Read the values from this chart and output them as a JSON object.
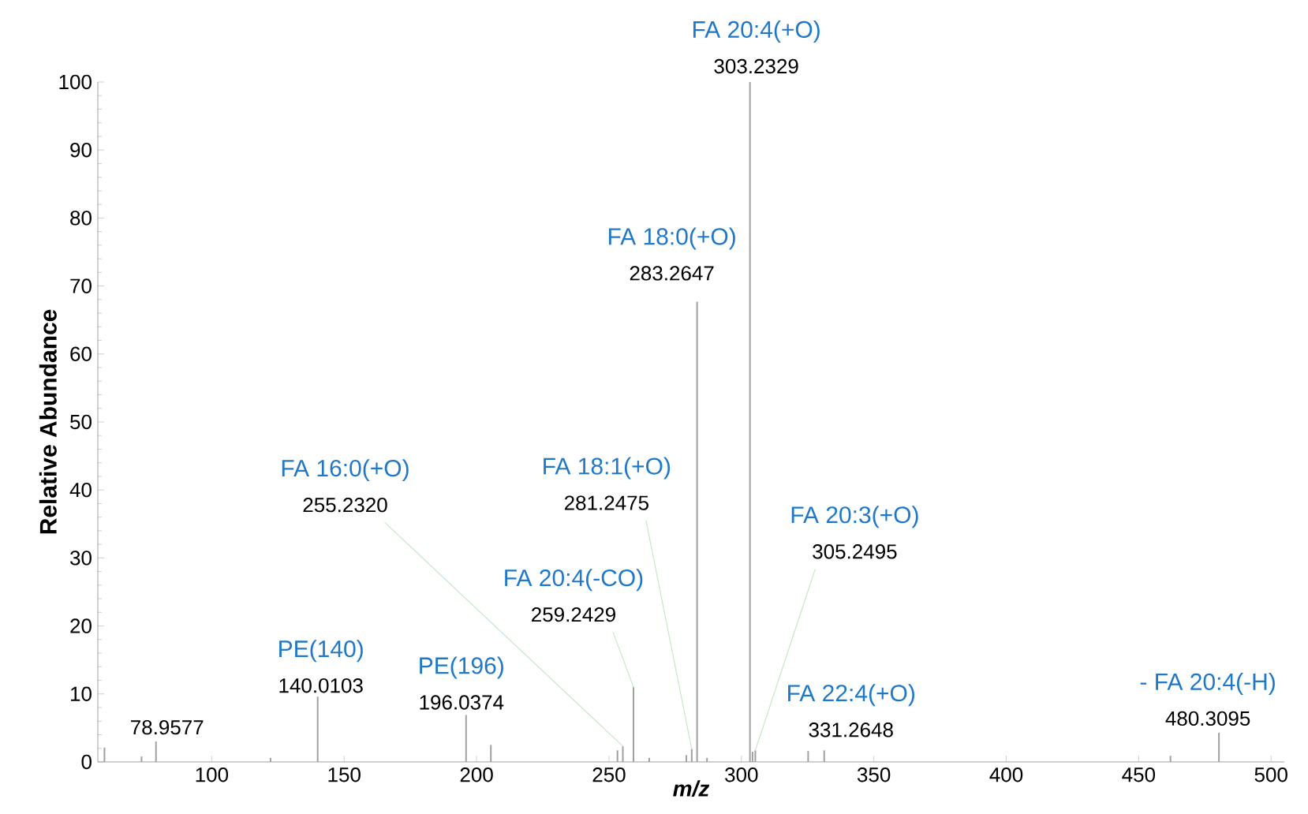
{
  "chart_data": {
    "type": "bar",
    "xlabel": "m/z",
    "ylabel": "Relative Abundance",
    "color": "#a0a0a0",
    "x": [
      59.5,
      73.5,
      78.9577,
      122.2,
      140.0103,
      196.0374,
      205.4,
      253.2,
      255.232,
      259.2429,
      265.2,
      279.2,
      281.2475,
      283.2647,
      287.0,
      303.2329,
      304.2,
      305.2495,
      325.2,
      331.2648,
      462.0,
      480.3095
    ],
    "values": [
      2.1,
      0.8,
      3.0,
      0.6,
      9.6,
      6.9,
      2.5,
      1.7,
      2.3,
      11.0,
      0.6,
      1.0,
      1.9,
      67.7,
      0.6,
      100,
      1.5,
      1.7,
      1.6,
      1.7,
      0.9,
      4.3
    ],
    "xlim": [
      57,
      505
    ],
    "ylim": [
      0,
      100
    ],
    "xticks": [
      100,
      150,
      200,
      250,
      300,
      350,
      400,
      450,
      500
    ],
    "yticks": [
      0,
      10,
      20,
      30,
      40,
      50,
      60,
      70,
      80,
      90,
      100
    ],
    "annotations": [
      {
        "text": "FA 20:4(+O)",
        "x": 303.2329,
        "y": 100
      },
      {
        "text": "303.2329",
        "x": 303.2329,
        "y": 100
      },
      {
        "text": "FA 18:0(+O)",
        "x": 283.2647,
        "y": 67.7
      },
      {
        "text": "283.2647",
        "x": 283.2647,
        "y": 67.7
      },
      "FA 16:0(+O)",
      {
        "text": "255.2320",
        "x": 255.232,
        "y": 2.3
      },
      "FA 18:1(+O)",
      {
        "text": "281.2475",
        "x": 281.2475,
        "y": 1.9
      },
      "FA 20:4(-CO)",
      {
        "text": "259.2429",
        "x": 259.2429,
        "y": 11.0
      },
      "FA 20:3(+O)",
      {
        "text": "305.2495",
        "x": 305.2495,
        "y": 1.7
      },
      {
        "text": "PE(140)",
        "x": 140.0103,
        "y": 9.6
      },
      {
        "text": "140.0103",
        "x": 140.0103,
        "y": 9.6
      },
      {
        "text": "PE(196)",
        "x": 196.0374,
        "y": 6.9
      },
      {
        "text": "196.0374",
        "x": 196.0374,
        "y": 6.9
      },
      {
        "text": "FA 22:4(+O)",
        "x": 331.2648,
        "y": 1.7
      },
      {
        "text": "331.2648",
        "x": 331.2648,
        "y": 1.7
      },
      {
        "text": "- FA 20:4(-H)",
        "x": 480.3095,
        "y": 4.3
      },
      {
        "text": "480.3095",
        "x": 480.3095,
        "y": 4.3
      },
      {
        "text": "78.9577",
        "x": 78.9577,
        "y": 3.0
      }
    ]
  }
}
